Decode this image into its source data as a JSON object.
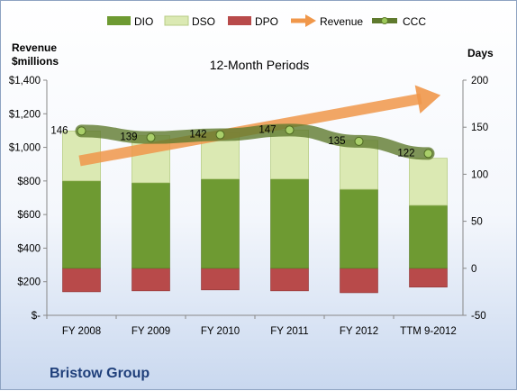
{
  "chart_data": {
    "type": "bar",
    "title": "12-Month Periods",
    "categories": [
      "FY 2008",
      "FY 2009",
      "FY 2010",
      "FY 2011",
      "FY 2012",
      "TTM 9-2012"
    ],
    "series": [
      {
        "name": "DIO",
        "axis": "right",
        "base": [
          -25,
          -24,
          -23,
          -24,
          -26,
          -20
        ],
        "values": [
          118,
          115,
          118,
          119,
          110,
          87
        ],
        "color": "#6e9a32"
      },
      {
        "name": "DSO",
        "axis": "right",
        "values": [
          53,
          50,
          49,
          52,
          52,
          50
        ],
        "color": "#dbe9b3"
      },
      {
        "name": "DPO",
        "axis": "right",
        "values": [
          25,
          24,
          23,
          24,
          26,
          20
        ],
        "color": "#b84a4a",
        "drawn_below_zero": true
      },
      {
        "name": "Revenue",
        "axis": "left",
        "color": "#f0974a"
      },
      {
        "name": "CCC",
        "axis": "right",
        "values": [
          146,
          139,
          142,
          147,
          135,
          122
        ],
        "color": "#5f7a2e"
      }
    ],
    "ccc_labels": [
      "146",
      "139",
      "142",
      "147",
      "135",
      "122"
    ],
    "y_left": {
      "label": "Revenue\n$millions",
      "lim": [
        0,
        1400
      ],
      "ticks": [
        "$-",
        "$200",
        "$400",
        "$600",
        "$800",
        "$1,000",
        "$1,200",
        "$1,400"
      ]
    },
    "y_right": {
      "label": "Days",
      "lim": [
        -50,
        200
      ],
      "ticks": [
        "-50",
        "0",
        "50",
        "100",
        "150",
        "200"
      ]
    },
    "legend": {
      "position": "top",
      "entries": [
        "DIO",
        "DSO",
        "DPO",
        "Revenue",
        "CCC"
      ]
    },
    "grid": false
  },
  "company": "Bristow Group"
}
